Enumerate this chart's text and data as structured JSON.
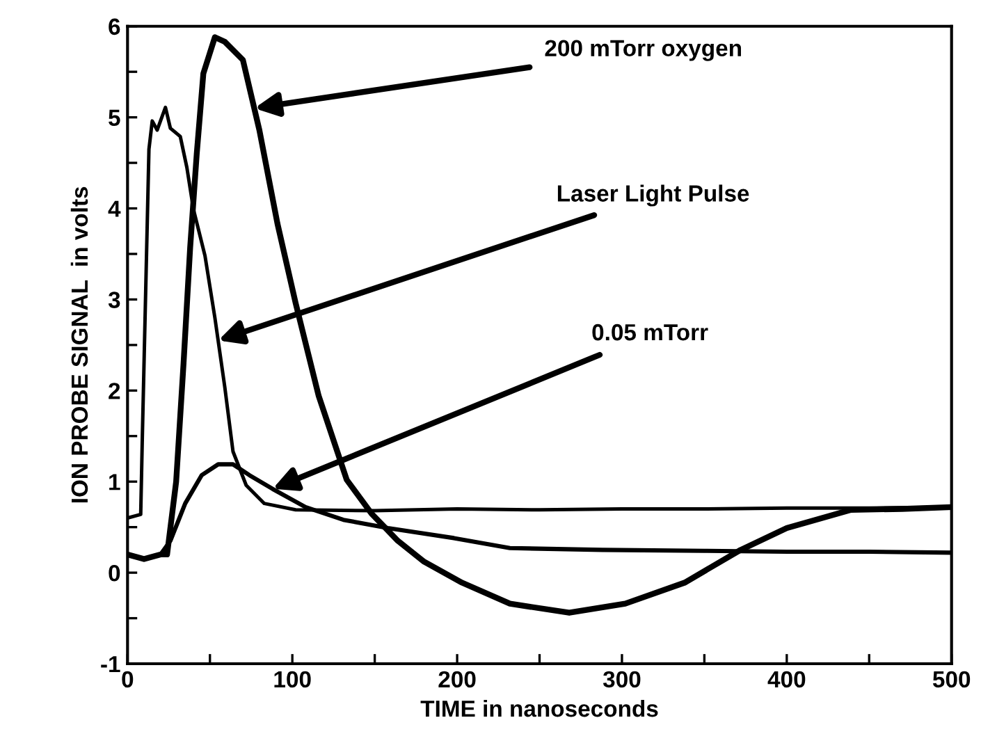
{
  "chart_data": {
    "type": "line",
    "xlabel": "TIME in nanoseconds",
    "ylabel": "ION PROBE SIGNAL  in volts",
    "xlim": [
      0,
      500
    ],
    "ylim": [
      -1,
      6
    ],
    "xticks": [
      0,
      {
        "value": 50,
        "label": null
      },
      100,
      {
        "value": 150,
        "label": null
      },
      200,
      {
        "value": 250,
        "label": null
      },
      300,
      {
        "value": 350,
        "label": null
      },
      400,
      {
        "value": 450,
        "label": null
      },
      500
    ],
    "yticks": [
      -1,
      {
        "value": -0.5,
        "label": null
      },
      0,
      {
        "value": 0.5,
        "label": null
      },
      1,
      {
        "value": 1.5,
        "label": null
      },
      2,
      {
        "value": 2.5,
        "label": null
      },
      3,
      {
        "value": 3.5,
        "label": null
      },
      4,
      {
        "value": 4.5,
        "label": null
      },
      5,
      {
        "value": 5.5,
        "label": null
      },
      6
    ],
    "grid": false,
    "marker": "none",
    "line_style": "solid",
    "series": [
      {
        "color": "#000000",
        "x": [
          0,
          8,
          9,
          13,
          15,
          18,
          23,
          26,
          32,
          36,
          40,
          47,
          53,
          59,
          64,
          72,
          83,
          102,
          150,
          200,
          250,
          300,
          350,
          400,
          450,
          500
        ],
        "values": [
          0.6,
          0.64,
          1.5,
          4.65,
          4.96,
          4.86,
          5.11,
          4.88,
          4.79,
          4.45,
          3.99,
          3.48,
          2.8,
          2.04,
          1.33,
          0.96,
          0.76,
          0.69,
          0.68,
          0.7,
          0.69,
          0.7,
          0.7,
          0.71,
          0.71,
          0.72
        ]
      },
      {
        "color": "#000000",
        "x": [
          0,
          10,
          20,
          24,
          29.5,
          34,
          38,
          42,
          46,
          53,
          59,
          70,
          80,
          91,
          102,
          116,
          133,
          148,
          164,
          180,
          203,
          232,
          268,
          302,
          338,
          372,
          400,
          439,
          470,
          500
        ],
        "values": [
          0.2,
          0.15,
          0.2,
          0.2,
          1.0,
          2.3,
          3.57,
          4.6,
          5.48,
          5.88,
          5.83,
          5.63,
          4.86,
          3.83,
          2.96,
          1.94,
          1.02,
          0.65,
          0.35,
          0.12,
          -0.11,
          -0.34,
          -0.44,
          -0.34,
          -0.11,
          0.25,
          0.49,
          0.69,
          0.7,
          0.72
        ]
      },
      {
        "color": "#000000",
        "x": [
          0,
          10,
          20,
          26,
          35,
          45,
          55,
          64,
          74,
          88,
          108,
          131,
          158,
          198,
          232,
          288,
          350,
          400,
          450,
          500
        ],
        "values": [
          0.2,
          0.15,
          0.2,
          0.35,
          0.76,
          1.07,
          1.19,
          1.19,
          1.07,
          0.92,
          0.72,
          0.58,
          0.49,
          0.38,
          0.27,
          0.25,
          0.24,
          0.23,
          0.23,
          0.22
        ]
      }
    ],
    "annotations": [
      {
        "text": "200 mTorr oxygen",
        "x": 77,
        "y": 5.1
      },
      {
        "text": "Laser Light Pulse",
        "x": 55,
        "y": 2.55
      },
      {
        "text": "0.05 mTorr",
        "x": 88,
        "y": 0.92
      }
    ]
  }
}
